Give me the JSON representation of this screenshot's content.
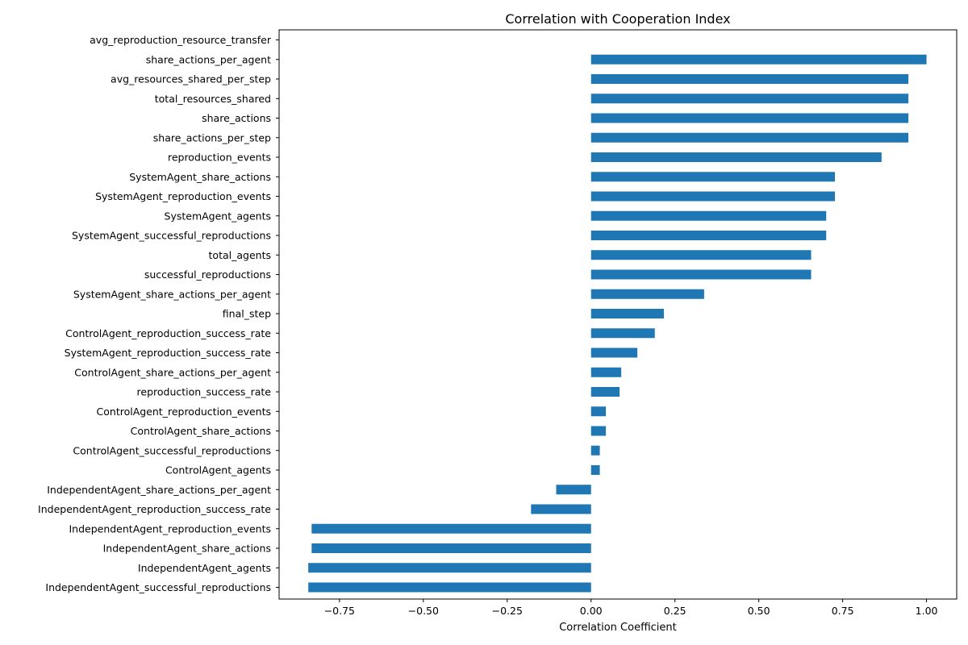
{
  "chart_data": {
    "type": "bar",
    "orientation": "horizontal",
    "title": "Correlation with Cooperation Index",
    "xlabel": "Correlation Coefficient",
    "ylabel": "",
    "xlim": [
      -0.93,
      1.09
    ],
    "xticks": [
      -0.75,
      -0.5,
      -0.25,
      0.0,
      0.25,
      0.5,
      0.75,
      1.0
    ],
    "xtick_labels": [
      "−0.75",
      "−0.50",
      "−0.25",
      "0.00",
      "0.25",
      "0.50",
      "0.75",
      "1.00"
    ],
    "grid": false,
    "bar_color": "#1f77b4",
    "categories": [
      "avg_reproduction_resource_transfer",
      "share_actions_per_agent",
      "avg_resources_shared_per_step",
      "total_resources_shared",
      "share_actions",
      "share_actions_per_step",
      "reproduction_events",
      "SystemAgent_share_actions",
      "SystemAgent_reproduction_events",
      "SystemAgent_agents",
      "SystemAgent_successful_reproductions",
      "total_agents",
      "successful_reproductions",
      "SystemAgent_share_actions_per_agent",
      "final_step",
      "ControlAgent_reproduction_success_rate",
      "SystemAgent_reproduction_success_rate",
      "ControlAgent_share_actions_per_agent",
      "reproduction_success_rate",
      "ControlAgent_reproduction_events",
      "ControlAgent_share_actions",
      "ControlAgent_successful_reproductions",
      "ControlAgent_agents",
      "IndependentAgent_share_actions_per_agent",
      "IndependentAgent_reproduction_success_rate",
      "IndependentAgent_reproduction_events",
      "IndependentAgent_share_actions",
      "IndependentAgent_agents",
      "IndependentAgent_successful_reproductions"
    ],
    "values": [
      null,
      1.0,
      0.946,
      0.946,
      0.946,
      0.946,
      0.866,
      0.727,
      0.727,
      0.701,
      0.701,
      0.656,
      0.656,
      0.337,
      0.217,
      0.19,
      0.138,
      0.09,
      0.085,
      0.044,
      0.044,
      0.026,
      0.026,
      -0.104,
      -0.179,
      -0.833,
      -0.833,
      -0.843,
      -0.843
    ]
  }
}
